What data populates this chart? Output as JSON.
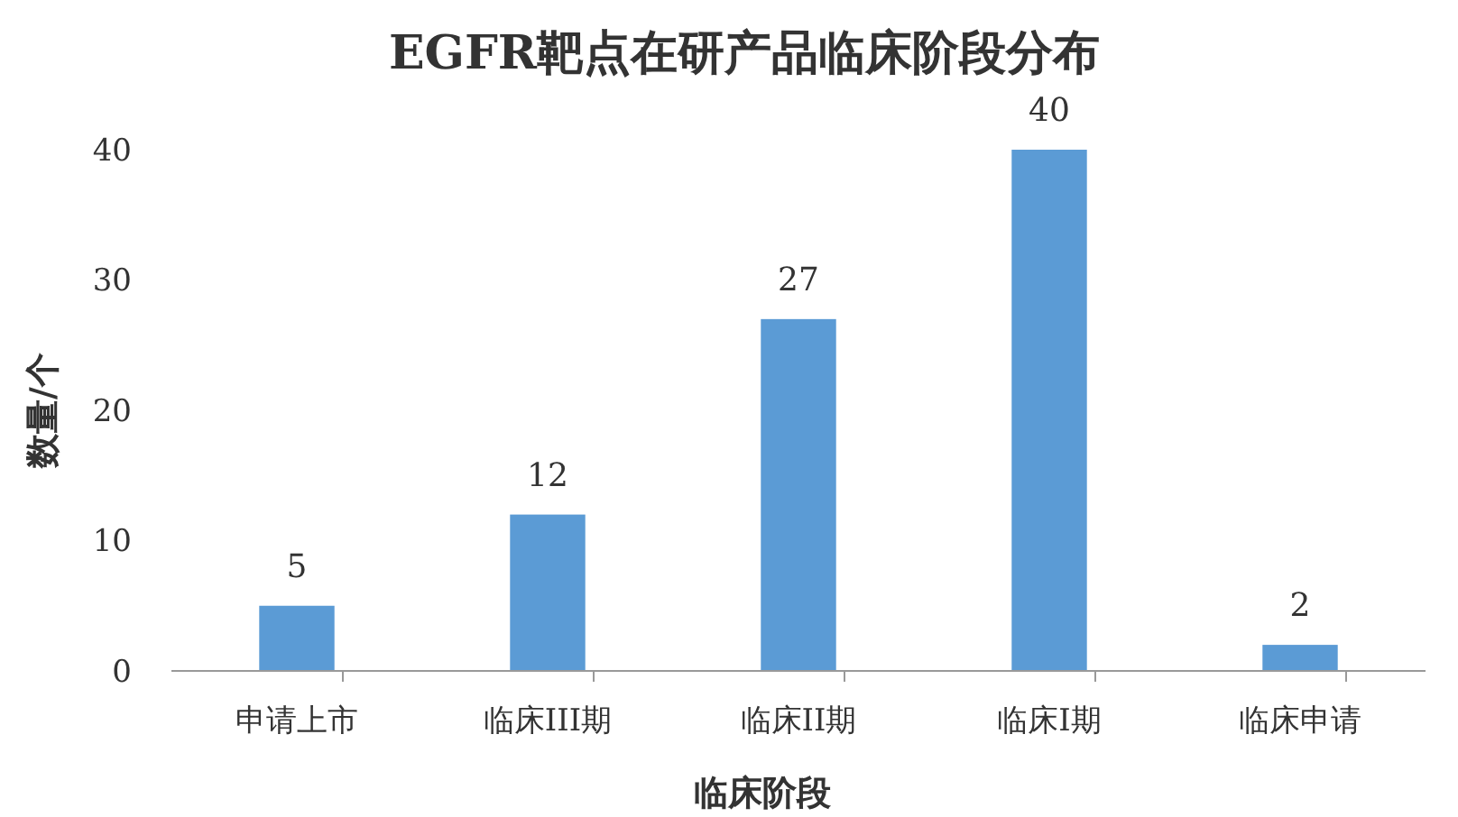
{
  "chart_data": {
    "type": "bar",
    "title": "EGFR靶点在研产品临床阶段分布",
    "xlabel": "临床阶段",
    "ylabel": "数量/个",
    "categories": [
      "申请上市",
      "临床III期",
      "临床II期",
      "临床I期",
      "临床申请"
    ],
    "values": [
      5,
      12,
      27,
      40,
      2
    ],
    "color": "#5b9bd5",
    "ylim": [
      0,
      40
    ],
    "yticks": [
      0,
      10,
      20,
      30,
      40
    ],
    "data_labels": true,
    "grid": false
  }
}
